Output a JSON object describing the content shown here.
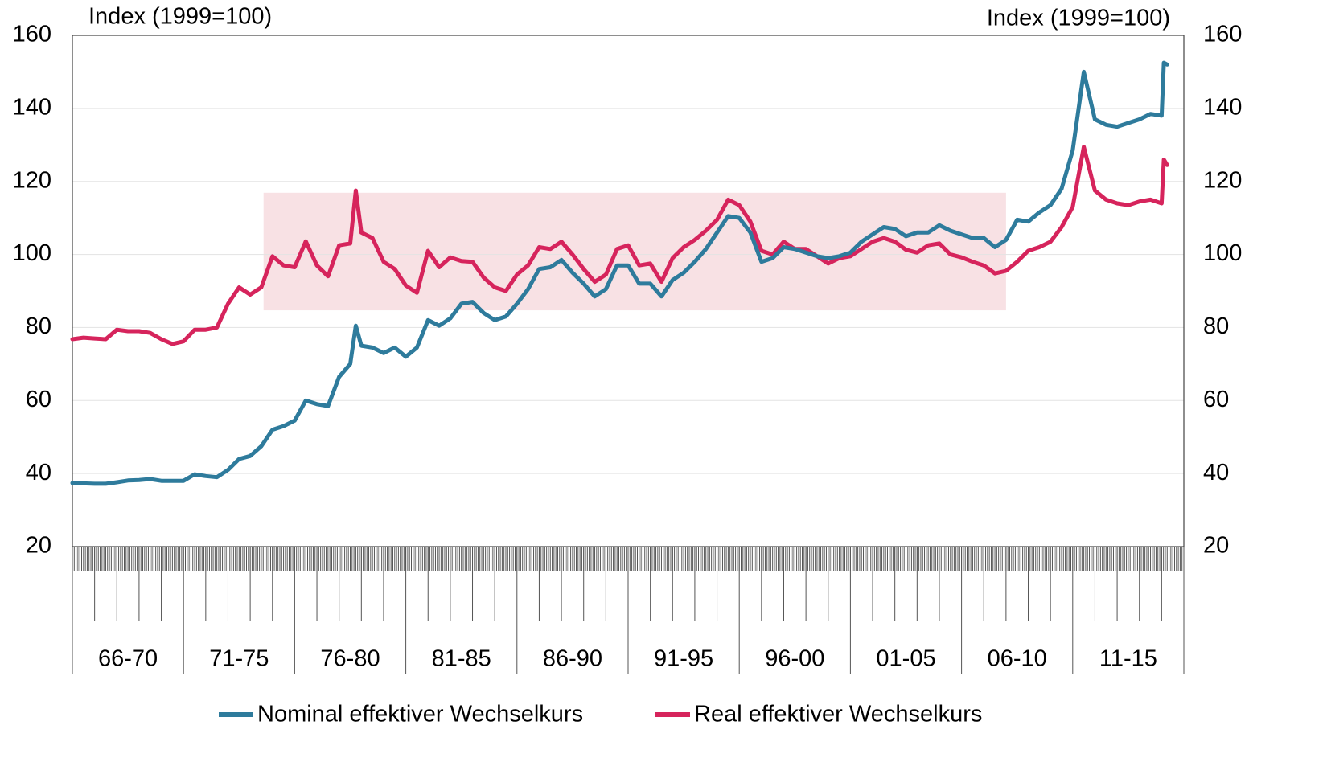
{
  "chart_data": {
    "type": "line",
    "y_label": "Index (1999=100)",
    "y2_label": "Index (1999=100)",
    "xlim": [
      1966,
      2016
    ],
    "xticks": [
      {
        "value": 1968.5,
        "label": "66-70"
      },
      {
        "value": 1973.5,
        "label": "71-75"
      },
      {
        "value": 1978.5,
        "label": "76-80"
      },
      {
        "value": 1983.5,
        "label": "81-85"
      },
      {
        "value": 1988.5,
        "label": "86-90"
      },
      {
        "value": 1993.5,
        "label": "91-95"
      },
      {
        "value": 1998.5,
        "label": "96-00"
      },
      {
        "value": 2003.5,
        "label": "01-05"
      },
      {
        "value": 2008.5,
        "label": "06-10"
      },
      {
        "value": 2013.5,
        "label": "11-15"
      }
    ],
    "ylim": [
      20,
      160
    ],
    "yticks": [
      20,
      40,
      60,
      80,
      100,
      120,
      140,
      160
    ],
    "y2lim": [
      20,
      160
    ],
    "y2ticks": [
      20,
      40,
      60,
      80,
      100,
      120,
      140,
      160
    ],
    "grid": true,
    "legend": "bottom",
    "band": {
      "color": "#f8e1e4",
      "xlim": [
        1974.6,
        2008.0
      ],
      "ylim": [
        84.7,
        116.9
      ]
    },
    "x": [
      1966.0,
      1966.5,
      1967.0,
      1967.5,
      1968.0,
      1968.5,
      1969.0,
      1969.5,
      1970.0,
      1970.5,
      1971.0,
      1971.5,
      1972.0,
      1972.5,
      1973.0,
      1973.5,
      1974.0,
      1974.5,
      1975.0,
      1975.5,
      1976.0,
      1976.5,
      1977.0,
      1977.5,
      1978.0,
      1978.5,
      1978.75,
      1979.0,
      1979.5,
      1980.0,
      1980.5,
      1981.0,
      1981.5,
      1982.0,
      1982.5,
      1983.0,
      1983.5,
      1984.0,
      1984.5,
      1985.0,
      1985.5,
      1986.0,
      1986.5,
      1987.0,
      1987.5,
      1988.0,
      1988.5,
      1989.0,
      1989.5,
      1990.0,
      1990.5,
      1991.0,
      1991.5,
      1992.0,
      1992.5,
      1993.0,
      1993.5,
      1994.0,
      1994.5,
      1995.0,
      1995.5,
      1996.0,
      1996.5,
      1997.0,
      1997.5,
      1998.0,
      1998.5,
      1999.0,
      1999.5,
      2000.0,
      2000.5,
      2001.0,
      2001.5,
      2002.0,
      2002.5,
      2003.0,
      2003.5,
      2004.0,
      2004.5,
      2005.0,
      2005.5,
      2006.0,
      2006.5,
      2007.0,
      2007.5,
      2008.0,
      2008.5,
      2009.0,
      2009.5,
      2010.0,
      2010.5,
      2011.0,
      2011.5,
      2012.0,
      2012.5,
      2013.0,
      2013.5,
      2014.0,
      2014.5,
      2015.0,
      2015.1,
      2015.25
    ],
    "series": [
      {
        "name": "Nominal effektiver Wechselkurs",
        "color": "#2e7b9c",
        "values": [
          37.4,
          37.3,
          37.2,
          37.2,
          37.6,
          38.1,
          38.2,
          38.5,
          38.0,
          38.0,
          38.0,
          39.8,
          39.3,
          39.0,
          41.0,
          44.0,
          44.8,
          47.5,
          52.0,
          53.0,
          54.5,
          60.0,
          59.0,
          58.5,
          66.5,
          70.0,
          80.5,
          75.0,
          74.5,
          73.0,
          74.5,
          72.0,
          74.5,
          82.0,
          80.5,
          82.5,
          86.5,
          87.0,
          84.0,
          82.0,
          83.0,
          86.5,
          90.5,
          96.0,
          96.5,
          98.5,
          95.0,
          92.0,
          88.5,
          90.5,
          97.0,
          97.0,
          92.0,
          92.0,
          88.5,
          93.0,
          95.0,
          98.0,
          101.5,
          106.0,
          110.5,
          110.0,
          106.0,
          98.0,
          99.0,
          102.0,
          101.5,
          100.5,
          99.5,
          99.0,
          99.5,
          100.5,
          103.5,
          105.5,
          107.5,
          107.0,
          105.0,
          106.0,
          106.0,
          108.0,
          106.5,
          105.5,
          104.5,
          104.5,
          102.0,
          104.0,
          109.5,
          109.0,
          111.5,
          113.5,
          118.0,
          128.5,
          150.0,
          137.0,
          135.5,
          135.0,
          136.0,
          137.0,
          138.5,
          138.0,
          152.5,
          152.0
        ]
      },
      {
        "name": "Real effektiver Wechselkurs",
        "color": "#d6245c",
        "values": [
          76.8,
          77.2,
          77.0,
          76.8,
          79.4,
          79.0,
          79.0,
          78.5,
          76.8,
          75.5,
          76.2,
          79.4,
          79.4,
          80.0,
          86.5,
          91.0,
          89.0,
          91.0,
          99.5,
          97.0,
          96.5,
          103.6,
          97.0,
          94.0,
          102.5,
          103.0,
          117.5,
          106.0,
          104.5,
          98.0,
          96.0,
          91.5,
          89.5,
          101.0,
          96.5,
          99.2,
          98.2,
          98.0,
          93.7,
          91.0,
          90.0,
          94.5,
          97.0,
          102.0,
          101.5,
          103.5,
          100.0,
          96.0,
          92.5,
          94.5,
          101.5,
          102.5,
          97.0,
          97.5,
          92.5,
          99.0,
          102.0,
          104.0,
          106.5,
          109.5,
          115.0,
          113.5,
          109.0,
          101.0,
          100.0,
          103.5,
          101.5,
          101.5,
          99.5,
          97.5,
          99.0,
          99.5,
          101.5,
          103.5,
          104.5,
          103.5,
          101.3,
          100.5,
          102.5,
          103.0,
          100.0,
          99.2,
          98.0,
          97.0,
          94.8,
          95.5,
          98.0,
          101.0,
          102.0,
          103.5,
          107.5,
          113.0,
          129.5,
          117.5,
          115.0,
          114.0,
          113.5,
          114.5,
          115.0,
          114.0,
          126.0,
          124.5
        ]
      }
    ]
  }
}
